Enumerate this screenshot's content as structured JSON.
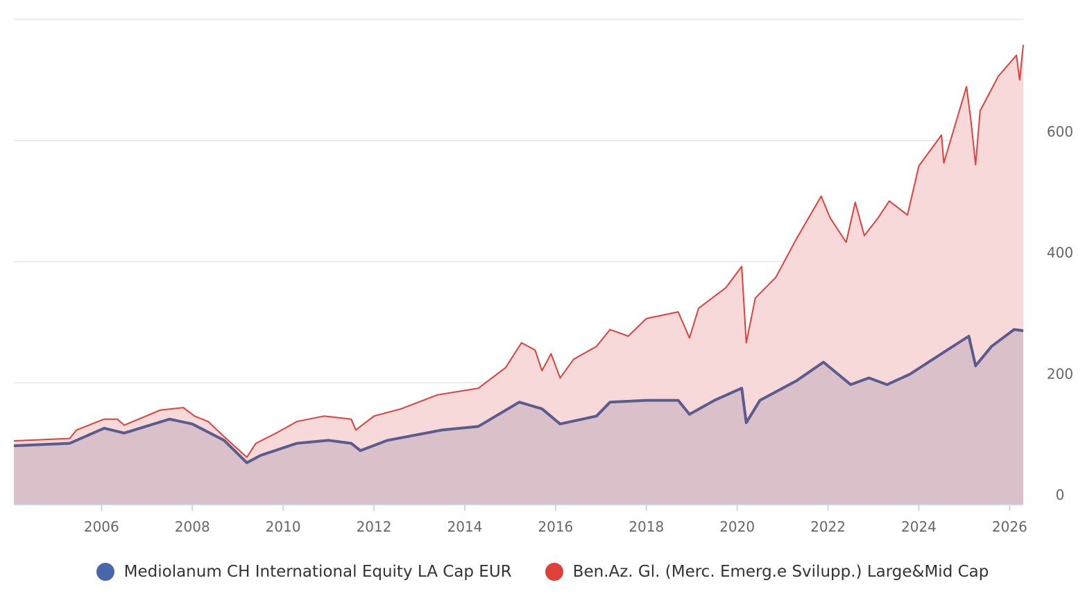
{
  "chart_data": {
    "type": "area",
    "xlim": [
      2004.07,
      2026.3
    ],
    "ylim": [
      0,
      800
    ],
    "grid": true,
    "y_axis_position": "right",
    "legend_placement": "bottom",
    "x_ticks": [
      "2006",
      "2008",
      "2010",
      "2012",
      "2014",
      "2016",
      "2018",
      "2020",
      "2022",
      "2024",
      "2026"
    ],
    "y_ticks": [
      "0",
      "200",
      "400",
      "600"
    ],
    "series": [
      {
        "name": "Ben.Az. Gl. (Merc. Emerg.e Svilupp.) Large&Mid Cap",
        "color": "#e0403a",
        "fill": "#f8d9d9",
        "x": [
          2004.07,
          2005.3,
          2005.45,
          2006.06,
          2006.35,
          2006.5,
          2007.3,
          2007.8,
          2008.05,
          2008.35,
          2008.7,
          2008.95,
          2009.2,
          2009.4,
          2009.85,
          2010.3,
          2010.9,
          2011.5,
          2011.6,
          2012.0,
          2012.6,
          2013.4,
          2014.3,
          2014.9,
          2015.25,
          2015.55,
          2015.7,
          2015.9,
          2016.1,
          2016.4,
          2016.9,
          2017.2,
          2017.6,
          2018.0,
          2018.7,
          2018.95,
          2019.15,
          2019.75,
          2020.1,
          2020.2,
          2020.4,
          2020.85,
          2021.3,
          2021.85,
          2022.05,
          2022.4,
          2022.6,
          2022.8,
          2023.1,
          2023.35,
          2023.75,
          2024.0,
          2024.5,
          2024.55,
          2025.05,
          2025.15,
          2025.25,
          2025.35,
          2025.75,
          2026.15,
          2026.22,
          2026.3
        ],
        "y": [
          104,
          108,
          122,
          140,
          140,
          130,
          155,
          159,
          145,
          136,
          111,
          94,
          77,
          100,
          117,
          136,
          145,
          140,
          122,
          145,
          157,
          180,
          191,
          225,
          266,
          254,
          220,
          248,
          208,
          239,
          260,
          288,
          277,
          306,
          317,
          274,
          323,
          357,
          392,
          266,
          340,
          374,
          437,
          508,
          472,
          432,
          498,
          443,
          472,
          500,
          477,
          558,
          609,
          563,
          689,
          632,
          560,
          649,
          706,
          741,
          700,
          758
        ]
      },
      {
        "name": "Mediolanum CH International Equity LA Cap EUR",
        "color": "#5c5b8e",
        "legend_color": "#4767aa",
        "fill": "#dac0c8",
        "x": [
          2004.07,
          2005.3,
          2006.06,
          2006.5,
          2007.5,
          2008.0,
          2008.7,
          2009.2,
          2009.5,
          2010.3,
          2011.0,
          2011.5,
          2011.7,
          2012.3,
          2013.5,
          2014.3,
          2015.2,
          2015.7,
          2016.1,
          2016.9,
          2017.2,
          2018.0,
          2018.7,
          2018.95,
          2019.5,
          2020.1,
          2020.2,
          2020.5,
          2021.3,
          2021.9,
          2022.5,
          2022.9,
          2023.3,
          2023.8,
          2024.5,
          2025.1,
          2025.25,
          2025.6,
          2026.1,
          2026.3
        ],
        "y": [
          96,
          100,
          125,
          117,
          140,
          132,
          105,
          68,
          80,
          100,
          105,
          100,
          88,
          105,
          122,
          128,
          168,
          157,
          132,
          145,
          168,
          171,
          171,
          148,
          171,
          191,
          134,
          171,
          203,
          234,
          197,
          208,
          197,
          214,
          248,
          277,
          228,
          260,
          288,
          286
        ]
      }
    ]
  }
}
